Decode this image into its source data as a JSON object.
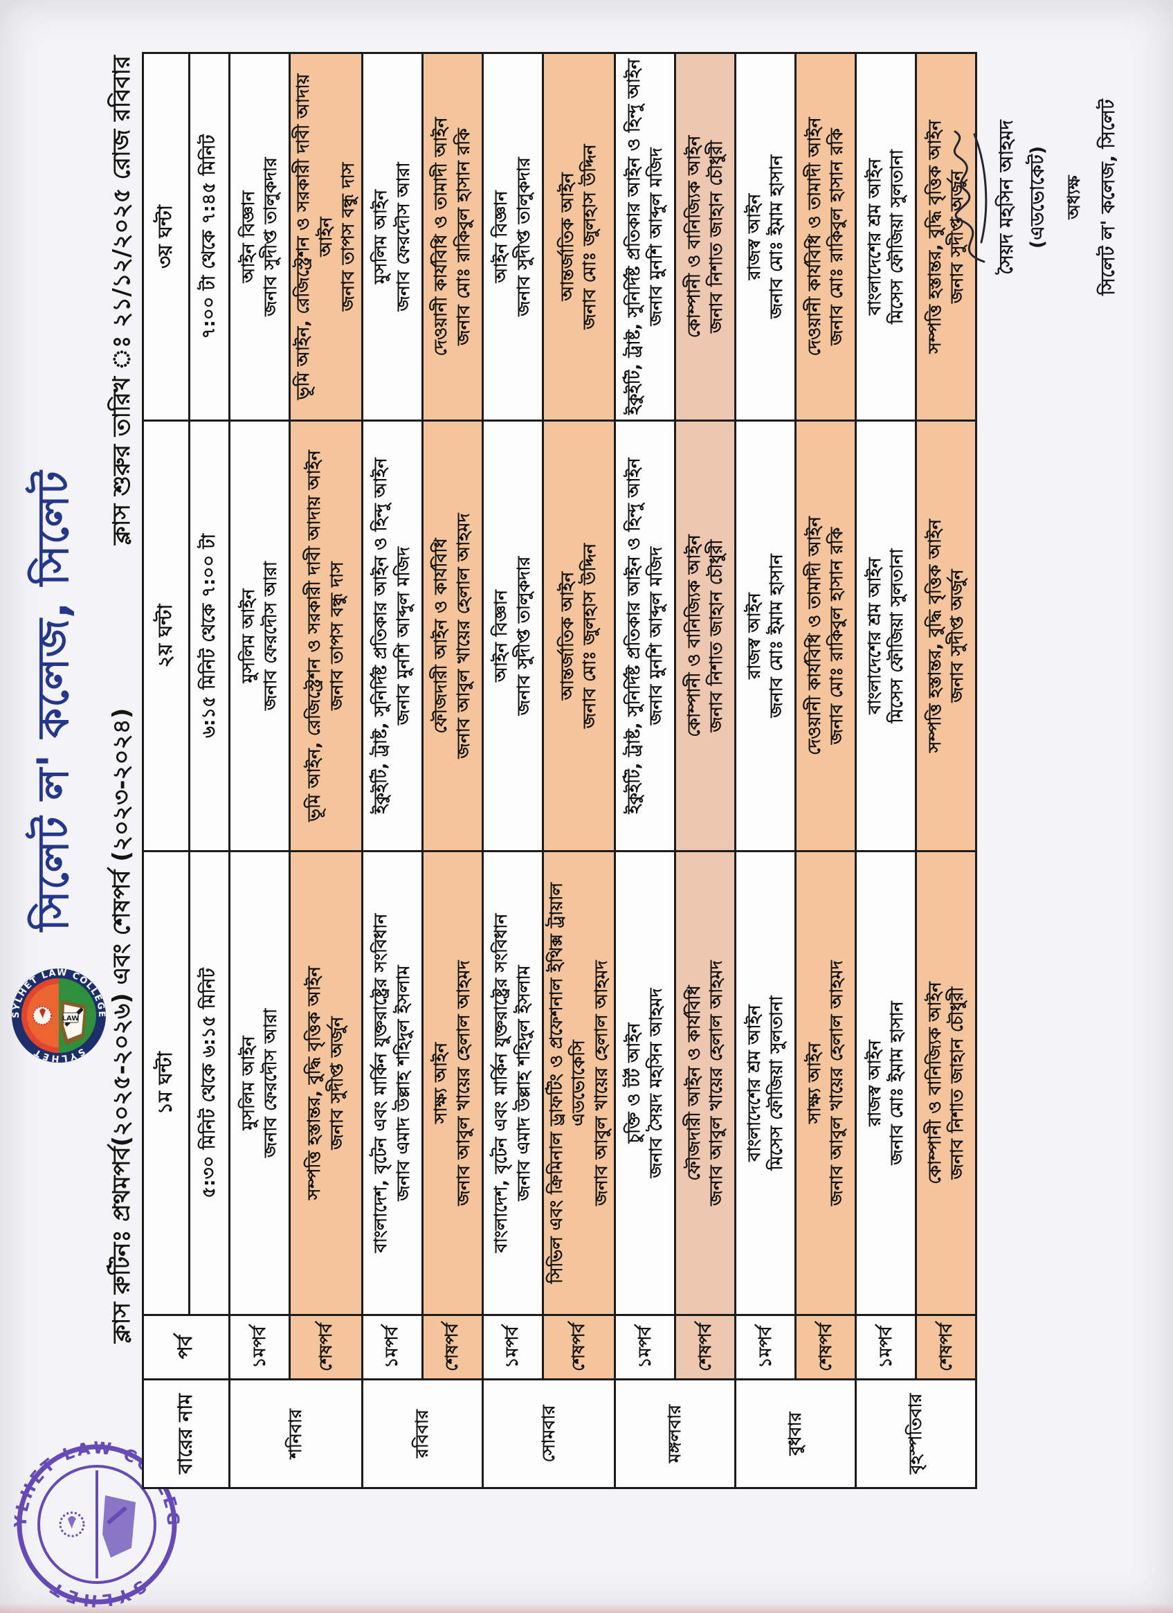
{
  "letterhead": {
    "title": "সিলেট ল' কলেজ, সিলেট",
    "subtitle_left": "ক্লাস রুটিনঃ প্রথমপর্ব(২০২৫-২০২৬) এবং শেষপর্ব (২০২৩-২০২৪)",
    "subtitle_right": "ক্লাস শুরুর তারিখ ঃ ২১/১২/২০২৫ রোজ রবিবার",
    "logo": {
      "arc_top": "SYLHET LAW COLLEGE",
      "arc_bottom": "SYLHET",
      "law_label": "LAW"
    }
  },
  "stamp": {
    "arc_top": "SYLHET LAW COLLEGE",
    "arc_bottom": "SYLHET"
  },
  "table": {
    "day_header": "বারের নাম",
    "term_header": "পর্ব",
    "periods": [
      {
        "name": "১ম ঘন্টা",
        "time": "৫:৩০ মিনিট থেকে ৬:১৫ মিনিট"
      },
      {
        "name": "২য় ঘন্টা",
        "time": "৬:১৫ মিনিট থেকে ৭:০০ টা"
      },
      {
        "name": "৩য় ঘন্টা",
        "time": "৭:০০ টা থেকে ৭:৪৫ মিনিট"
      }
    ],
    "days": [
      {
        "name": "শনিবার",
        "rows": [
          {
            "term": "১মপর্ব",
            "bg": "white",
            "cells": [
              {
                "subject": "মুসলিম আইন",
                "teacher": "জনাব ফেরদৌস আরা"
              },
              {
                "subject": "মুসলিম আইন",
                "teacher": "জনাব ফেরদৌস আরা"
              },
              {
                "subject": "আইন বিজ্ঞান",
                "teacher": "জনাব সুদীপ্ত তালুকদার"
              }
            ]
          },
          {
            "term": "শেষপর্ব",
            "bg": "peach",
            "cells": [
              {
                "subject": "সম্পত্তি হস্তান্তর, বুদ্ধি বৃত্তিক আইন",
                "teacher": "জনাব সুদীপ্ত অর্জুন"
              },
              {
                "subject": "ভূমি আইন, রেজিস্ট্রেশন ও সরকারী দাবী আদায় আইন",
                "teacher": "জনাব তাপস বন্ধু দাস"
              },
              {
                "subject": "ভূমি আইন, রেজিস্ট্রেশন ও সরকারী দাবী আদায় আইন",
                "teacher": "জনাব তাপস বন্ধু দাস"
              }
            ]
          }
        ]
      },
      {
        "name": "রবিবার",
        "rows": [
          {
            "term": "১মপর্ব",
            "bg": "white",
            "cells": [
              {
                "subject": "বাংলাদেশ, বৃটেন এবং মার্কিন যুক্তরাষ্ট্রের সংবিধান",
                "teacher": "জনাব এমাদ উল্লাহ শহিদুল ইসলাম"
              },
              {
                "subject": "ইকুইটি, ট্রাষ্ট, সুনির্দিষ্ট প্রতিকার আইন ও হিন্দু আইন",
                "teacher": "জনাব মুনশি আব্দুল মজিদ"
              },
              {
                "subject": "মুসলিম আইন",
                "teacher": "জনাব ফেরদৌস আরা"
              }
            ]
          },
          {
            "term": "শেষপর্ব",
            "bg": "peach",
            "cells": [
              {
                "subject": "সাক্ষ্য আইন",
                "teacher": "জনাব আবুল খায়ের হেলাল আহমদ"
              },
              {
                "subject": "ফৌজদারী আইন ও কার্যবিধি",
                "teacher": "জনাব আবুল খায়ের হেলাল আহমদ"
              },
              {
                "subject": "দেওয়ানী কার্যবিধি ও তামাদী আইন",
                "teacher": "জনাব মোঃ রাকিবুল হাসান রকি"
              }
            ]
          }
        ]
      },
      {
        "name": "সোমবার",
        "rows": [
          {
            "term": "১মপর্ব",
            "bg": "white",
            "cells": [
              {
                "subject": "বাংলাদেশ, বৃটেন এবং মার্কিন যুক্তরাষ্ট্রের সংবিধান",
                "teacher": "জনাব এমাদ উল্লাহ শহিদুল ইসলাম"
              },
              {
                "subject": "আইন বিজ্ঞান",
                "teacher": "জনাব সুদীপ্ত তালুকদার"
              },
              {
                "subject": "আইন বিজ্ঞান",
                "teacher": "জনাব সুদীপ্ত তালুকদার"
              }
            ]
          },
          {
            "term": "শেষপর্ব",
            "bg": "peach",
            "cells": [
              {
                "subject": "সিভিল এবং ক্রিমিনাল ড্রাফটিং ও প্রফেশনাল ইথিক্স ট্রায়াল এডভোকেসি",
                "teacher": "জনাব আবুল খায়ের হেলাল আহমদ"
              },
              {
                "subject": "আন্তর্জাতিক আইন",
                "teacher": "জনাব মোঃ জুলহাস উদ্দিন"
              },
              {
                "subject": "আন্তর্জাতিক আইন",
                "teacher": "জনাব মোঃ জুলহাস উদ্দিন"
              }
            ]
          }
        ]
      },
      {
        "name": "মঙ্গলবার",
        "rows": [
          {
            "term": "১মপর্ব",
            "bg": "white",
            "cells": [
              {
                "subject": "চুক্তি ও টর্ট আইন",
                "teacher": "জনাব সৈয়দ মহসিন আহমদ"
              },
              {
                "subject": "ইকুইটি, ট্রাষ্ট, সুনির্দিষ্ট প্রতিকার আইন ও হিন্দু আইন",
                "teacher": "জনাব মুনশি আব্দুল মজিদ"
              },
              {
                "subject": "ইকুইটি, ট্রাষ্ট, সুনির্দিষ্ট প্রতিকার আইন ও হিন্দু আইন",
                "teacher": "জনাব মুনশি আব্দুল মজিদ"
              }
            ]
          },
          {
            "term": "শেষপর্ব",
            "bg": "pink",
            "cells": [
              {
                "subject": "ফৌজদারী আইন ও কার্যবিধি",
                "teacher": "জনাব আবুল খায়ের হেলাল আহমদ"
              },
              {
                "subject": "কোম্পানী ও বানিজ্যিক আইন",
                "teacher": "জনাব নিশাত জাহান চৌধুরী"
              },
              {
                "subject": "কোম্পানী ও বানিজ্যিক আইন",
                "teacher": "জনাব নিশাত জাহান চৌধুরী"
              }
            ]
          }
        ]
      },
      {
        "name": "বুধবার",
        "rows": [
          {
            "term": "১মপর্ব",
            "bg": "white",
            "cells": [
              {
                "subject": "বাংলাদেশের শ্রম আইন",
                "teacher": "মিসেস ফৌজিয়া সুলতানা"
              },
              {
                "subject": "রাজস্ব আইন",
                "teacher": "জনাব মোঃ ইমাম হাসান"
              },
              {
                "subject": "রাজস্ব আইন",
                "teacher": "জনাব মোঃ ইমাম হাসান"
              }
            ]
          },
          {
            "term": "শেষপর্ব",
            "bg": "peach",
            "cells": [
              {
                "subject": "সাক্ষ্য আইন",
                "teacher": "জনাব আবুল খায়ের হেলাল আহমদ"
              },
              {
                "subject": "দেওয়ানী কার্যবিধি ও তামাদী আইন",
                "teacher": "জনাব মোঃ রাকিবুল হাসান রকি"
              },
              {
                "subject": "দেওয়ানী কার্যবিধি ও তামাদী আইন",
                "teacher": "জনাব মোঃ রাকিবুল হাসান রকি"
              }
            ]
          }
        ]
      },
      {
        "name": "বৃহস্পতিবার",
        "rows": [
          {
            "term": "১মপর্ব",
            "bg": "white",
            "cells": [
              {
                "subject": "রাজস্ব আইন",
                "teacher": "জনাব মোঃ ইমাম হাসান"
              },
              {
                "subject": "বাংলাদেশের শ্রম আইন",
                "teacher": "মিসেস ফৌজিয়া সুলতানা"
              },
              {
                "subject": "বাংলাদেশের শ্রম আইন",
                "teacher": "মিসেস ফৌজিয়া সুলতানা"
              }
            ]
          },
          {
            "term": "শেষপর্ব",
            "bg": "peach",
            "cells": [
              {
                "subject": "কোম্পানী ও বানিজ্যিক আইন",
                "teacher": "জনাব নিশাত জাহান চৌধুরী"
              },
              {
                "subject": "সম্পত্তি হস্তান্তর, বুদ্ধি বৃত্তিক আইন",
                "teacher": "জনাব সুদীপ্ত অর্জুন"
              },
              {
                "subject": "সম্পত্তি হস্তান্তর, বুদ্ধি বৃত্তিক আইন",
                "teacher": "জনাব সুদীপ্ত অর্জুন"
              }
            ]
          }
        ]
      }
    ]
  },
  "signature": {
    "name": "সৈয়দ মহসিন আহমদ (এডভোকেট)",
    "role": "অধ্যক্ষ",
    "org": "সিলেট ল' কলেজ, সিলেট"
  },
  "colors": {
    "paper": "#f4f3f6",
    "cell_white": "#fdfcfd",
    "row_peach": "#f4c59c",
    "row_pink": "#eec7b1",
    "border": "#1c1c1c",
    "title_blue": "#24378b",
    "stamp_purple": "#5a3cb0",
    "logo_navy": "#1d2f6b",
    "logo_red": "#e2452c",
    "logo_green": "#2f8f3c"
  }
}
